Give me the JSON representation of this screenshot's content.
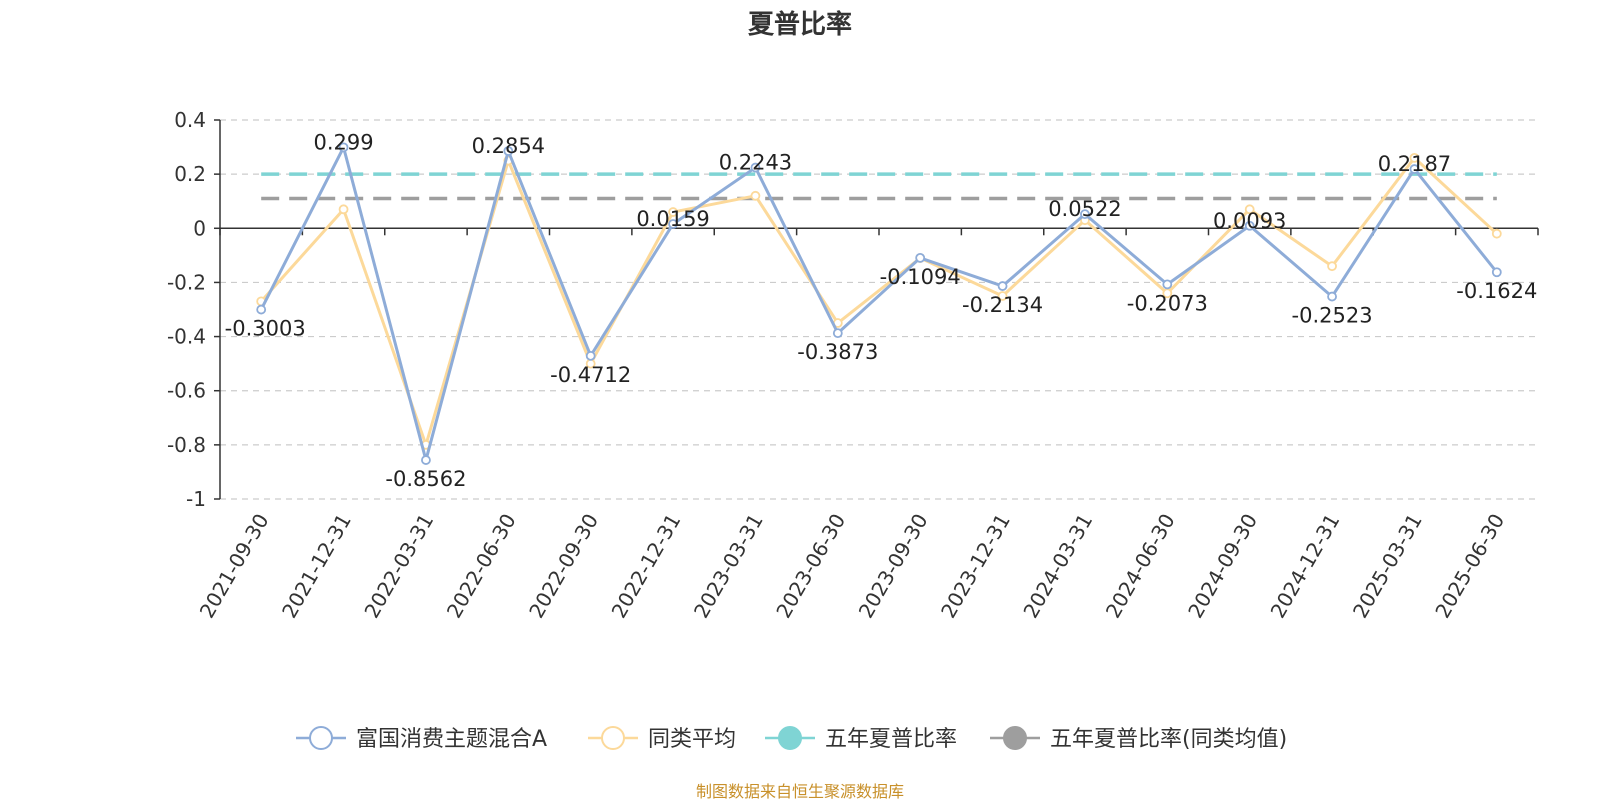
{
  "title": "夏普比率",
  "source_note": "制图数据来自恒生聚源数据库",
  "chart_data": {
    "type": "line",
    "title": "夏普比率",
    "xlabel": "",
    "ylabel": "",
    "ylim": [
      -1,
      0.4
    ],
    "yticks": [
      {
        "value": 0.4,
        "label": "0.4"
      },
      {
        "value": 0.2,
        "label": "0.2"
      },
      {
        "value": 0,
        "label": "0"
      },
      {
        "value": -0.2,
        "label": "-0.2"
      },
      {
        "value": -0.4,
        "label": "-0.4"
      },
      {
        "value": -0.6,
        "label": "-0.6"
      },
      {
        "value": -0.8,
        "label": "-0.8"
      },
      {
        "value": -1,
        "label": "-1"
      }
    ],
    "grid": true,
    "legend_position": "bottom",
    "categories": [
      "2021-09-30",
      "2021-12-31",
      "2022-03-31",
      "2022-06-30",
      "2022-09-30",
      "2022-12-31",
      "2023-03-31",
      "2023-06-30",
      "2023-09-30",
      "2023-12-31",
      "2024-03-31",
      "2024-06-30",
      "2024-09-30",
      "2024-12-31",
      "2025-03-31",
      "2025-06-30"
    ],
    "series": [
      {
        "name": "富国消费主题混合A",
        "color": "#8eacd8",
        "values": [
          -0.3003,
          0.299,
          -0.8562,
          0.2854,
          -0.4712,
          0.0159,
          0.2243,
          -0.3873,
          -0.1094,
          -0.2134,
          0.0522,
          -0.2073,
          0.0093,
          -0.2523,
          0.2187,
          -0.1624
        ],
        "labels": [
          "-0.3003",
          "0.299",
          "-0.8562",
          "0.2854",
          "-0.4712",
          "0.0159",
          "0.2243",
          "-0.3873",
          "-0.1094",
          "-0.2134",
          "0.0522",
          "-0.2073",
          "0.0093",
          "-0.2523",
          "0.2187",
          "-0.1624"
        ]
      },
      {
        "name": "同类平均",
        "color": "#fcd99a",
        "values": [
          -0.27,
          0.07,
          -0.8,
          0.25,
          -0.5,
          0.06,
          0.12,
          -0.35,
          -0.11,
          -0.25,
          0.03,
          -0.24,
          0.07,
          -0.14,
          0.26,
          -0.02
        ]
      }
    ],
    "reference_lines": [
      {
        "name": "五年夏普比率",
        "color": "#7fd4d4",
        "value": 0.2
      },
      {
        "name": "五年夏普比率(同类均值)",
        "color": "#9e9e9e",
        "value": 0.11
      }
    ]
  }
}
